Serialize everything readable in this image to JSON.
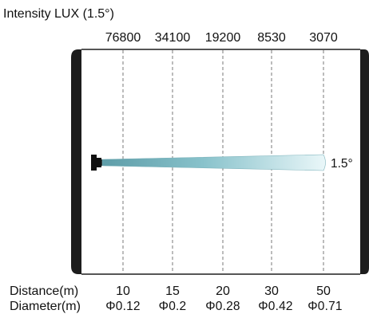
{
  "title": "Intensity LUX (1.5°)",
  "intensity_values": [
    "76800",
    "34100",
    "19200",
    "8530",
    "3070"
  ],
  "beam_angle": "1.5°",
  "distance_label": "Distance(m)",
  "distance_values": [
    "10",
    "15",
    "20",
    "30",
    "50"
  ],
  "diameter_label": "Diameter(m)",
  "diameter_values": [
    "Φ0.12",
    "Φ0.2",
    "Φ0.28",
    "Φ0.42",
    "Φ0.71"
  ],
  "colors": {
    "panel_border": "#1d1d1d",
    "guide_line": "#7a7a7a",
    "beam_start": "#5e9da8",
    "beam_mid": "#88c2cb",
    "beam_end": "#eaf7f9",
    "fixture": "#111111"
  },
  "icons": {
    "fixture": "lamp-icon"
  }
}
